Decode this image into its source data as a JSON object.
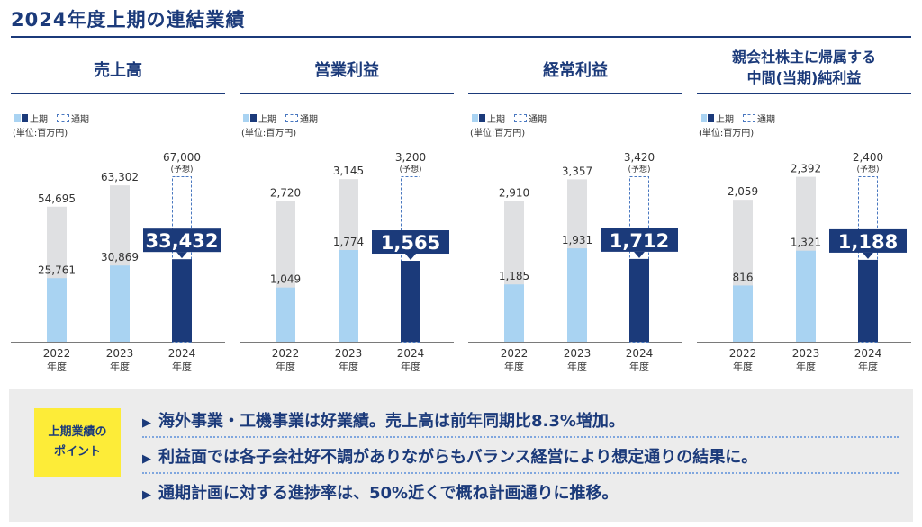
{
  "page": {
    "title": "2024年度上期の連結業績"
  },
  "legend": {
    "h1": "上期",
    "full": "通期"
  },
  "unit": "(単位:百万円)",
  "year_suffix": "年度",
  "forecast_label": "(予想)",
  "colors": {
    "h1_past": "#a9d3f2",
    "h1_current": "#1b3a7a",
    "full_year": "#dfe0e2",
    "forecast_border": "#4a78c0",
    "title": "#1b3a7a",
    "highlight": "#fdec38"
  },
  "chart_data": [
    {
      "type": "bar",
      "title": "売上高",
      "categories": [
        "2022",
        "2023",
        "2024"
      ],
      "series": [
        {
          "name": "上期",
          "values": [
            25761,
            30869,
            33432
          ]
        },
        {
          "name": "通期",
          "values": [
            54695,
            63302,
            67000
          ]
        }
      ],
      "forecast": [
        false,
        false,
        true
      ],
      "labels": {
        "h1": [
          "25,761",
          "30,869",
          "33,432"
        ],
        "full": [
          "54,695",
          "63,302",
          "67,000"
        ]
      }
    },
    {
      "type": "bar",
      "title": "営業利益",
      "categories": [
        "2022",
        "2023",
        "2024"
      ],
      "series": [
        {
          "name": "上期",
          "values": [
            1049,
            1774,
            1565
          ]
        },
        {
          "name": "通期",
          "values": [
            2720,
            3145,
            3200
          ]
        }
      ],
      "forecast": [
        false,
        false,
        true
      ],
      "labels": {
        "h1": [
          "1,049",
          "1,774",
          "1,565"
        ],
        "full": [
          "2,720",
          "3,145",
          "3,200"
        ]
      }
    },
    {
      "type": "bar",
      "title": "経常利益",
      "categories": [
        "2022",
        "2023",
        "2024"
      ],
      "series": [
        {
          "name": "上期",
          "values": [
            1185,
            1931,
            1712
          ]
        },
        {
          "name": "通期",
          "values": [
            2910,
            3357,
            3420
          ]
        }
      ],
      "forecast": [
        false,
        false,
        true
      ],
      "labels": {
        "h1": [
          "1,185",
          "1,931",
          "1,712"
        ],
        "full": [
          "2,910",
          "3,357",
          "3,420"
        ]
      }
    },
    {
      "type": "bar",
      "title": "親会社株主に帰属する 中間(当期)純利益",
      "title_lines": [
        "親会社株主に帰属する",
        "中間(当期)純利益"
      ],
      "categories": [
        "2022",
        "2023",
        "2024"
      ],
      "series": [
        {
          "name": "上期",
          "values": [
            816,
            1321,
            1188
          ]
        },
        {
          "name": "通期",
          "values": [
            2059,
            2392,
            2400
          ]
        }
      ],
      "forecast": [
        false,
        false,
        true
      ],
      "labels": {
        "h1": [
          "816",
          "1,321",
          "1,188"
        ],
        "full": [
          "2,059",
          "2,392",
          "2,400"
        ]
      }
    }
  ],
  "highlights": {
    "label_line1": "上期業績の",
    "label_line2": "ポイント",
    "arrow": "▶",
    "items": [
      "海外事業・工機事業は好業績。売上高は前年同期比8.3%増加。",
      "利益面では各子会社好不調がありながらもバランス経営により想定通りの結果に。",
      "通期計画に対する進捗率は、50%近くで概ね計画通りに推移。"
    ]
  }
}
